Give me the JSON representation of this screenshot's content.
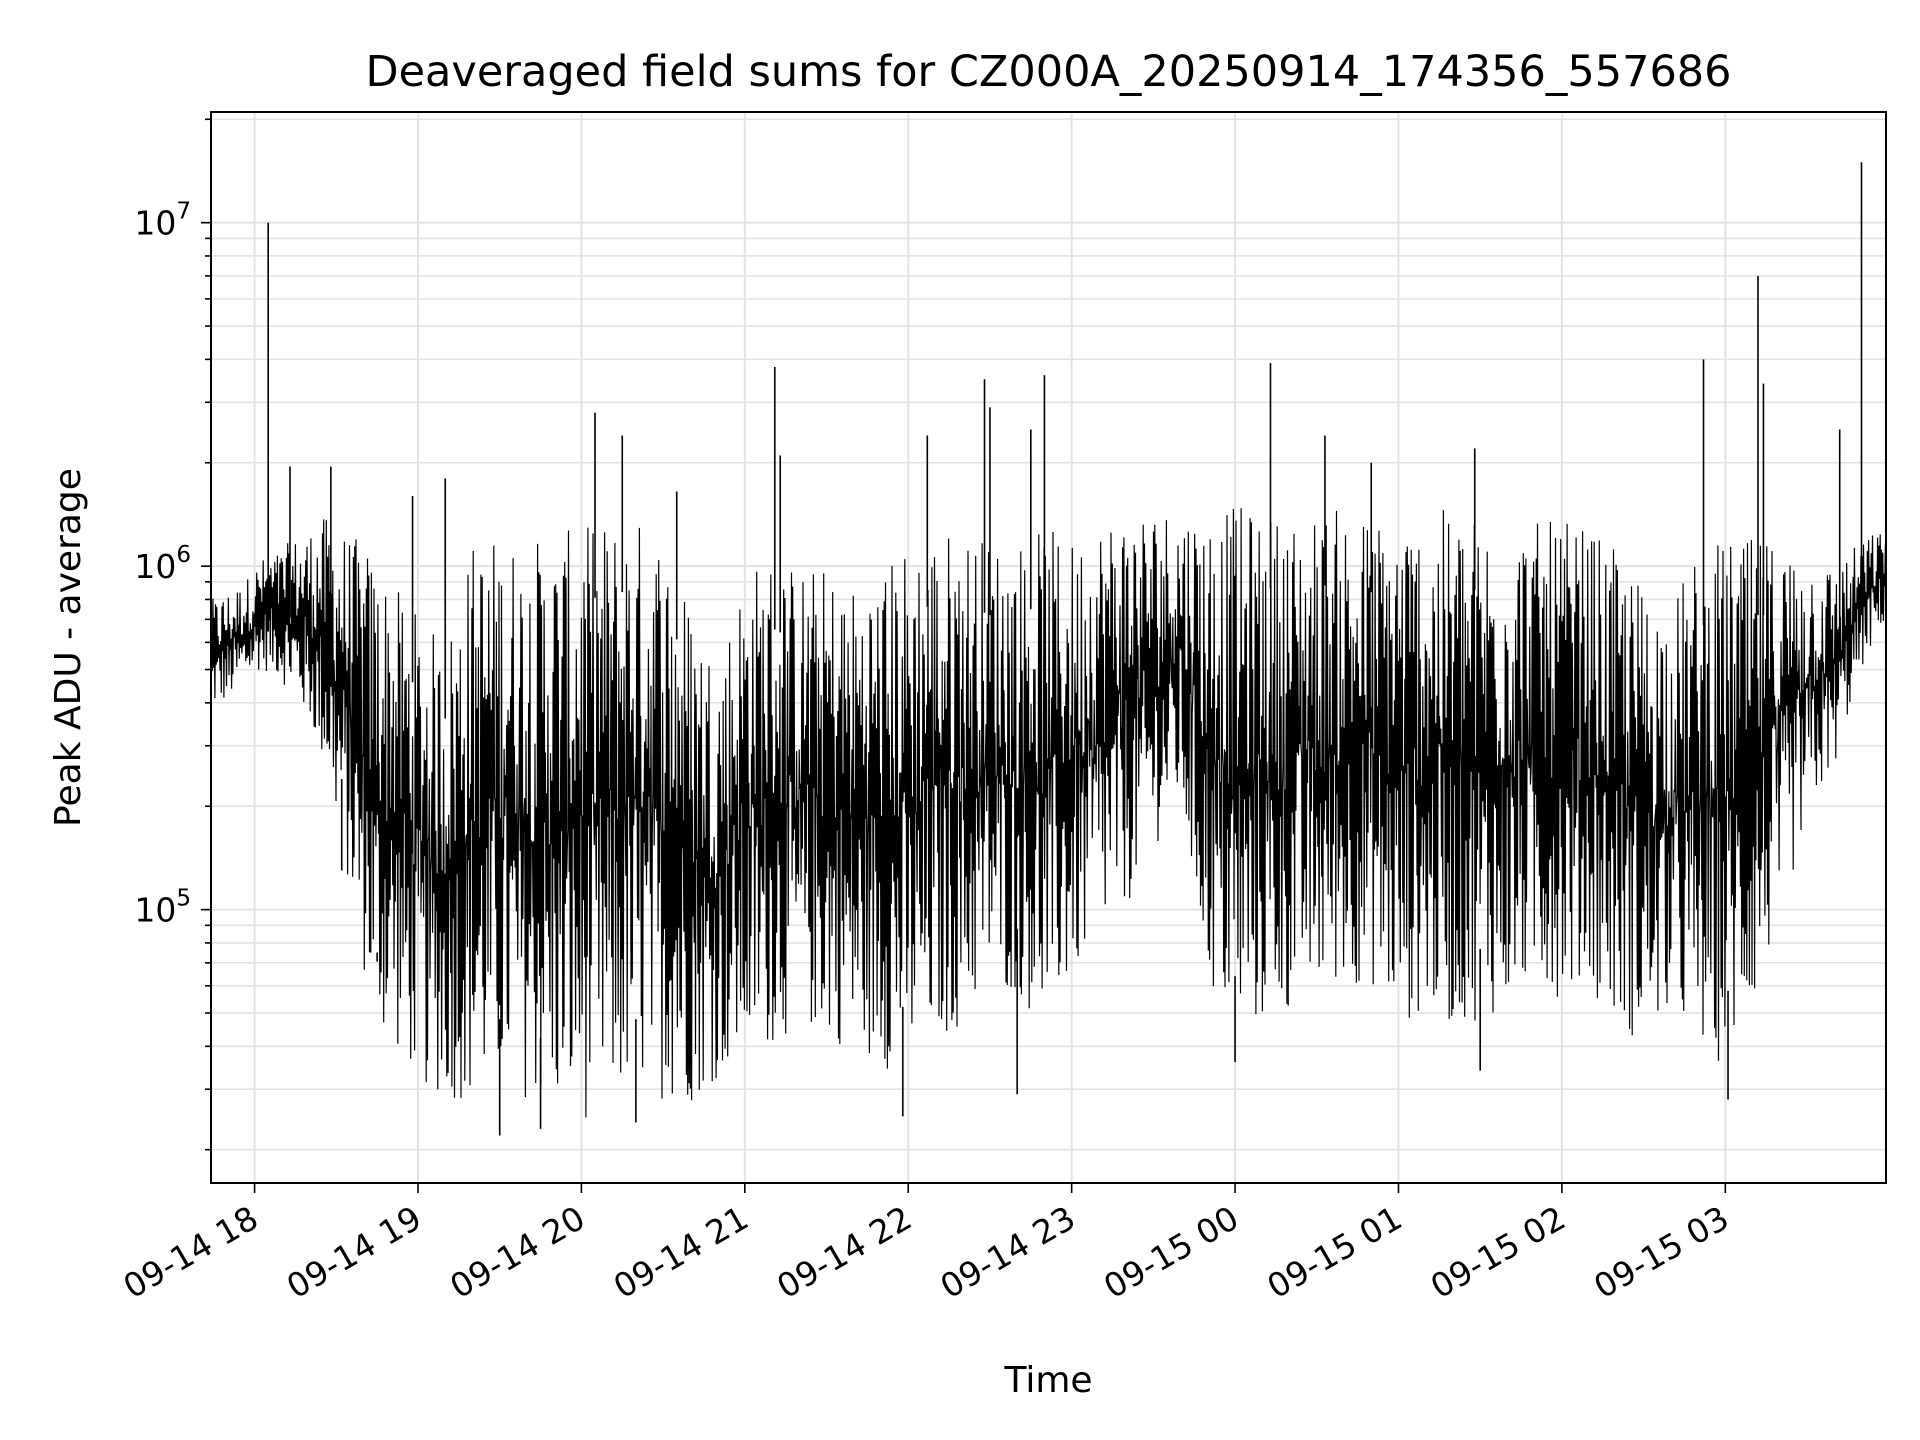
{
  "chart_data": {
    "type": "line",
    "title": "Deaveraged field sums for CZ000A_20250914_174356_557686",
    "xlabel": "Time",
    "ylabel": "Peak ADU - average",
    "yscale": "log",
    "ylim": [
      16000,
      21000000
    ],
    "xlim": [
      "2025-09-14 17:44",
      "2025-09-15 03:59"
    ],
    "x_ticks": [
      "09-14 18",
      "09-14 19",
      "09-14 20",
      "09-14 21",
      "09-14 22",
      "09-14 23",
      "09-15 00",
      "09-15 01",
      "09-15 02",
      "09-15 03"
    ],
    "y_ticks": [
      {
        "base": "10",
        "exp": "5",
        "value": 100000
      },
      {
        "base": "10",
        "exp": "6",
        "value": 1000000
      },
      {
        "base": "10",
        "exp": "7",
        "value": 10000000
      }
    ],
    "grid": true,
    "line_color": "#000000",
    "series": [
      {
        "x": [
          "2025-09-14 17:44",
          "2025-09-14 17:50",
          "2025-09-14 17:56",
          "2025-09-14 18:02",
          "2025-09-14 18:08",
          "2025-09-14 18:14",
          "2025-09-14 18:20",
          "2025-09-14 18:26",
          "2025-09-14 18:32",
          "2025-09-14 18:38",
          "2025-09-14 18:44",
          "2025-09-14 18:50",
          "2025-09-14 18:56",
          "2025-09-14 19:02",
          "2025-09-14 19:10",
          "2025-09-14 19:20",
          "2025-09-14 19:30",
          "2025-09-14 19:40",
          "2025-09-14 19:50",
          "2025-09-14 20:00",
          "2025-09-14 20:10",
          "2025-09-14 20:20",
          "2025-09-14 20:30",
          "2025-09-14 20:40",
          "2025-09-14 20:50",
          "2025-09-14 21:00",
          "2025-09-14 21:10",
          "2025-09-14 21:20",
          "2025-09-14 21:30",
          "2025-09-14 21:40",
          "2025-09-14 21:50",
          "2025-09-14 22:00",
          "2025-09-14 22:10",
          "2025-09-14 22:20",
          "2025-09-14 22:30",
          "2025-09-14 22:40",
          "2025-09-14 22:50",
          "2025-09-14 23:00",
          "2025-09-14 23:10",
          "2025-09-14 23:20",
          "2025-09-14 23:30",
          "2025-09-14 23:40",
          "2025-09-14 23:50",
          "2025-09-15 00:00",
          "2025-09-15 00:10",
          "2025-09-15 00:20",
          "2025-09-15 00:30",
          "2025-09-15 00:40",
          "2025-09-15 00:50",
          "2025-09-15 01:00",
          "2025-09-15 01:10",
          "2025-09-15 01:20",
          "2025-09-15 01:30",
          "2025-09-15 01:40",
          "2025-09-15 01:50",
          "2025-09-15 02:00",
          "2025-09-15 02:10",
          "2025-09-15 02:20",
          "2025-09-15 02:30",
          "2025-09-15 02:40",
          "2025-09-15 02:50",
          "2025-09-15 03:00",
          "2025-09-15 03:10",
          "2025-09-15 03:20",
          "2025-09-15 03:30",
          "2025-09-15 03:40",
          "2025-09-15 03:50",
          "2025-09-15 03:59"
        ],
        "low": [
          380000,
          400000,
          450000,
          500000,
          480000,
          420000,
          350000,
          250000,
          150000,
          80000,
          45000,
          40000,
          35000,
          30000,
          28000,
          27000,
          30000,
          28000,
          25000,
          24000,
          26000,
          30000,
          28000,
          27000,
          32000,
          35000,
          40000,
          45000,
          42000,
          38000,
          35000,
          32000,
          40000,
          45000,
          60000,
          55000,
          45000,
          60000,
          80000,
          100000,
          150000,
          200000,
          60000,
          40000,
          45000,
          50000,
          55000,
          60000,
          60000,
          45000,
          50000,
          45000,
          48000,
          50000,
          60000,
          55000,
          60000,
          45000,
          40000,
          50000,
          38000,
          35000,
          50000,
          90000,
          180000,
          260000,
          500000,
          700000
        ],
        "high": [
          800000,
          850000,
          900000,
          1050000,
          1100000,
          1200000,
          1300000,
          1400000,
          1300000,
          1200000,
          1100000,
          900000,
          800000,
          700000,
          600000,
          1200000,
          1250000,
          1200000,
          1250000,
          1300000,
          1400000,
          1400000,
          1300000,
          800000,
          550000,
          1000000,
          1100000,
          1000000,
          1000000,
          900000,
          1000000,
          1200000,
          1300000,
          1300000,
          1200000,
          1200000,
          1300000,
          1200000,
          1400000,
          1500000,
          1500000,
          1500000,
          1500000,
          1500000,
          1450000,
          1400000,
          1450000,
          1500000,
          1400000,
          1450000,
          1400000,
          1500000,
          1400000,
          1400000,
          1350000,
          1350000,
          1300000,
          1100000,
          900000,
          800000,
          1100000,
          1200000,
          1200000,
          1200000,
          1100000,
          1000000,
          1200000,
          1300000
        ]
      }
    ],
    "spikes": [
      {
        "x": "2025-09-14 18:05",
        "y": 10000000
      },
      {
        "x": "2025-09-14 18:13",
        "y": 1950000
      },
      {
        "x": "2025-09-14 18:28",
        "y": 1950000
      },
      {
        "x": "2025-09-14 18:58",
        "y": 1600000
      },
      {
        "x": "2025-09-14 19:10",
        "y": 1800000
      },
      {
        "x": "2025-09-14 20:05",
        "y": 2800000
      },
      {
        "x": "2025-09-14 20:15",
        "y": 2400000
      },
      {
        "x": "2025-09-14 20:35",
        "y": 1650000
      },
      {
        "x": "2025-09-14 21:11",
        "y": 3800000
      },
      {
        "x": "2025-09-14 21:13",
        "y": 2100000
      },
      {
        "x": "2025-09-14 22:07",
        "y": 2400000
      },
      {
        "x": "2025-09-14 22:28",
        "y": 3500000
      },
      {
        "x": "2025-09-14 22:30",
        "y": 2900000
      },
      {
        "x": "2025-09-14 22:45",
        "y": 2500000
      },
      {
        "x": "2025-09-14 22:50",
        "y": 3600000
      },
      {
        "x": "2025-09-15 00:13",
        "y": 3900000
      },
      {
        "x": "2025-09-15 00:33",
        "y": 2400000
      },
      {
        "x": "2025-09-15 00:50",
        "y": 2000000
      },
      {
        "x": "2025-09-15 01:28",
        "y": 2200000
      },
      {
        "x": "2025-09-15 02:52",
        "y": 4000000
      },
      {
        "x": "2025-09-15 03:12",
        "y": 7000000
      },
      {
        "x": "2025-09-15 03:14",
        "y": 3400000
      },
      {
        "x": "2025-09-15 03:42",
        "y": 2500000
      },
      {
        "x": "2025-09-15 03:50",
        "y": 15000000
      }
    ],
    "dips": [
      {
        "x": "2025-09-14 18:32",
        "y": 130000
      },
      {
        "x": "2025-09-14 18:45",
        "y": 75000
      },
      {
        "x": "2025-09-14 19:30",
        "y": 22000
      },
      {
        "x": "2025-09-14 19:45",
        "y": 23000
      },
      {
        "x": "2025-09-14 20:20",
        "y": 24000
      },
      {
        "x": "2025-09-14 21:58",
        "y": 25000
      },
      {
        "x": "2025-09-14 22:40",
        "y": 29000
      },
      {
        "x": "2025-09-15 00:00",
        "y": 36000
      },
      {
        "x": "2025-09-15 01:30",
        "y": 34000
      },
      {
        "x": "2025-09-15 03:01",
        "y": 28000
      }
    ]
  }
}
